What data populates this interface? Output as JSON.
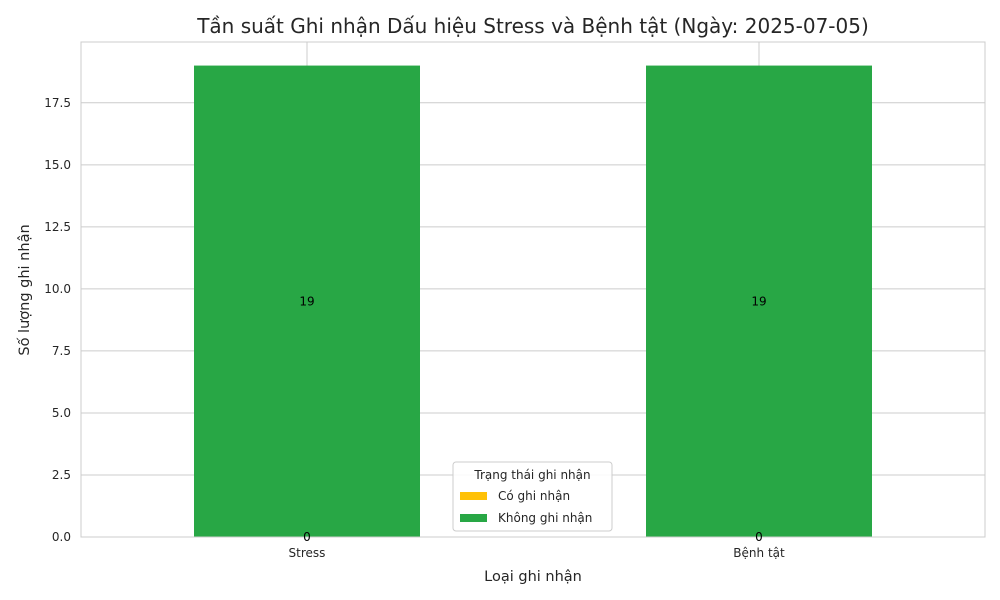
{
  "chart_data": {
    "type": "bar",
    "stacked": true,
    "title": "Tần suất Ghi nhận Dấu hiệu Stress và Bệnh tật (Ngày: 2025-07-05)",
    "xlabel": "Loại ghi nhận",
    "ylabel": "Số lượng ghi nhận",
    "categories": [
      "Stress",
      "Bệnh tật"
    ],
    "series": [
      {
        "name": "Có ghi nhận",
        "values": [
          0,
          0
        ],
        "color": "#ffc107",
        "value_labels": [
          "0",
          "0"
        ]
      },
      {
        "name": "Không ghi nhận",
        "values": [
          19,
          19
        ],
        "color": "#28a745",
        "value_labels": [
          "19",
          "19"
        ]
      }
    ],
    "ylim": [
      0,
      19.95
    ],
    "yticks": [
      "0.0",
      "2.5",
      "5.0",
      "7.5",
      "10.0",
      "12.5",
      "15.0",
      "17.5"
    ],
    "grid": true,
    "legend": {
      "title": "Trạng thái ghi nhận",
      "position": "lower-center"
    }
  }
}
